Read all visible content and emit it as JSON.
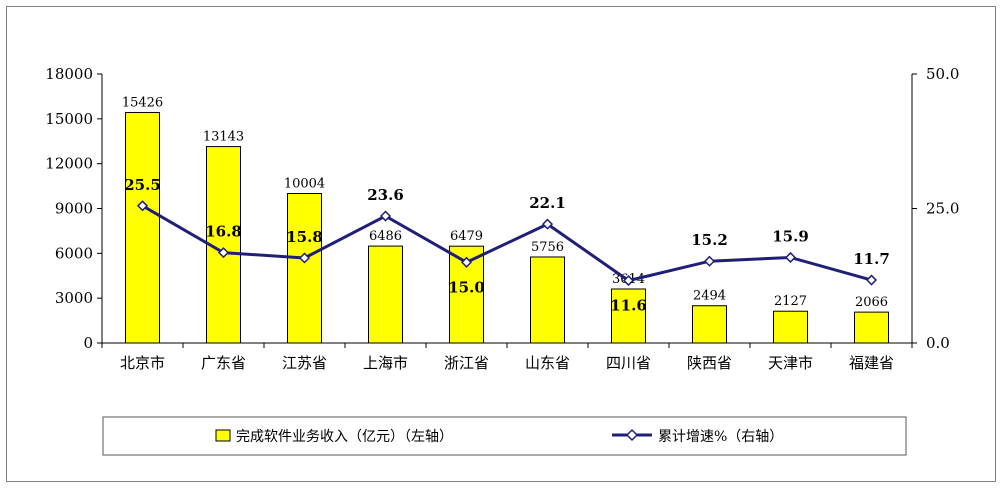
{
  "chart_data": {
    "type": "bar",
    "categories": [
      "北京市",
      "广东省",
      "江苏省",
      "上海市",
      "浙江省",
      "山东省",
      "四川省",
      "陕西省",
      "天津市",
      "福建省"
    ],
    "series": [
      {
        "name": "完成软件业务收入（亿元）（左轴）",
        "type": "bar",
        "axis": "left",
        "color": "#ffff00",
        "values": [
          15426,
          13143,
          10004,
          6486,
          6479,
          5756,
          3614,
          2494,
          2127,
          2066
        ],
        "labels": [
          "15426",
          "13143",
          "10004",
          "6486",
          "6479",
          "5756",
          "3614",
          "2494",
          "2127",
          "2066"
        ]
      },
      {
        "name": "累计增速%（右轴）",
        "type": "line",
        "axis": "right",
        "color": "#1f1f7a",
        "values": [
          25.5,
          16.8,
          15.8,
          23.6,
          15.0,
          22.1,
          11.6,
          15.2,
          15.9,
          11.7
        ],
        "labels": [
          "25.5",
          "16.8",
          "15.8",
          "23.6",
          "15.0",
          "22.1",
          "11.6",
          "15.2",
          "15.9",
          "11.7"
        ]
      }
    ],
    "y_left": {
      "min": 0,
      "max": 18000,
      "ticks": [
        "0",
        "3000",
        "6000",
        "9000",
        "12000",
        "15000",
        "18000"
      ]
    },
    "y_right": {
      "min": 0,
      "max": 50,
      "ticks": [
        "0.0",
        "25.0",
        "50.0"
      ]
    },
    "grid": false,
    "legend_position": "bottom"
  }
}
